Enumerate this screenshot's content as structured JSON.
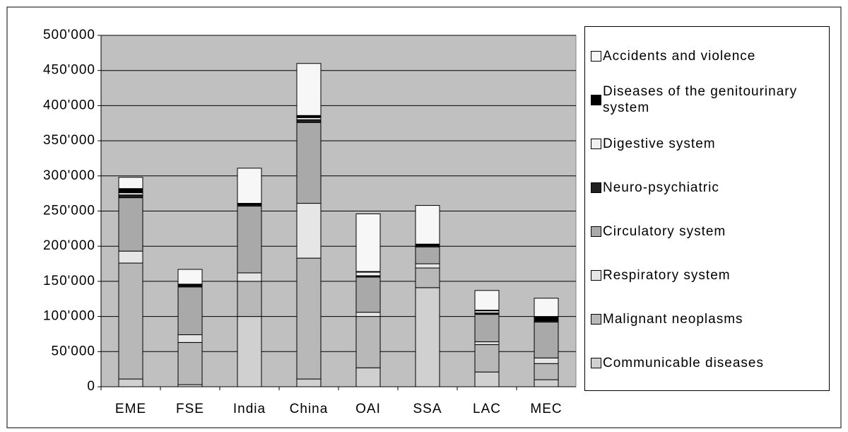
{
  "chart_data": {
    "type": "stacked_bar",
    "categories": [
      "EME",
      "FSE",
      "India",
      "China",
      "OAI",
      "SSA",
      "LAC",
      "MEC"
    ],
    "series": [
      {
        "name": "Communicable diseases",
        "color": "#d0d0d0",
        "values": [
          11000,
          3000,
          100000,
          11000,
          27000,
          141000,
          21000,
          10000
        ]
      },
      {
        "name": "Malignant neoplasms",
        "color": "#b8b8b8",
        "values": [
          165000,
          60000,
          50000,
          172000,
          73000,
          28000,
          39000,
          23000
        ]
      },
      {
        "name": "Respiratory system",
        "color": "#e6e6e6",
        "values": [
          17000,
          11000,
          12000,
          78000,
          6000,
          6000,
          4000,
          8000
        ]
      },
      {
        "name": "Circulatory system",
        "color": "#a9a9a9",
        "values": [
          76000,
          68000,
          95000,
          115000,
          50000,
          24000,
          39000,
          51000
        ]
      },
      {
        "name": "Neuro-psychiatric",
        "color": "#202020",
        "values": [
          4000,
          2000,
          2000,
          4000,
          2000,
          2000,
          2000,
          2000
        ]
      },
      {
        "name": "Digestive system",
        "color": "#f0f0f0",
        "values": [
          3000,
          1000,
          1000,
          3000,
          5000,
          1000,
          3000,
          1000
        ]
      },
      {
        "name": "Diseases of the genitourinary system",
        "color": "#000000",
        "values": [
          6000,
          1000,
          1000,
          3000,
          1000,
          1000,
          1000,
          5000
        ]
      },
      {
        "name": "Accidents and violence",
        "color": "#f7f7f7",
        "values": [
          16000,
          21000,
          50000,
          74000,
          82000,
          55000,
          28000,
          26000
        ]
      }
    ],
    "ylim": [
      0,
      500000
    ],
    "yticks": [
      0,
      {
        "value": 50000,
        "label": "50'000"
      },
      {
        "value": 100000,
        "label": "100'000"
      },
      {
        "value": 150000,
        "label": "150'000"
      },
      {
        "value": 200000,
        "label": "200'000"
      },
      {
        "value": 250000,
        "label": "250'000"
      },
      {
        "value": 300000,
        "label": "300'000"
      },
      {
        "value": 350000,
        "label": "350'000"
      },
      {
        "value": 400000,
        "label": "400'000"
      },
      {
        "value": 450000,
        "label": "450'000"
      },
      {
        "value": 500000,
        "label": "500'000"
      }
    ],
    "grid": true,
    "legend": "right"
  }
}
